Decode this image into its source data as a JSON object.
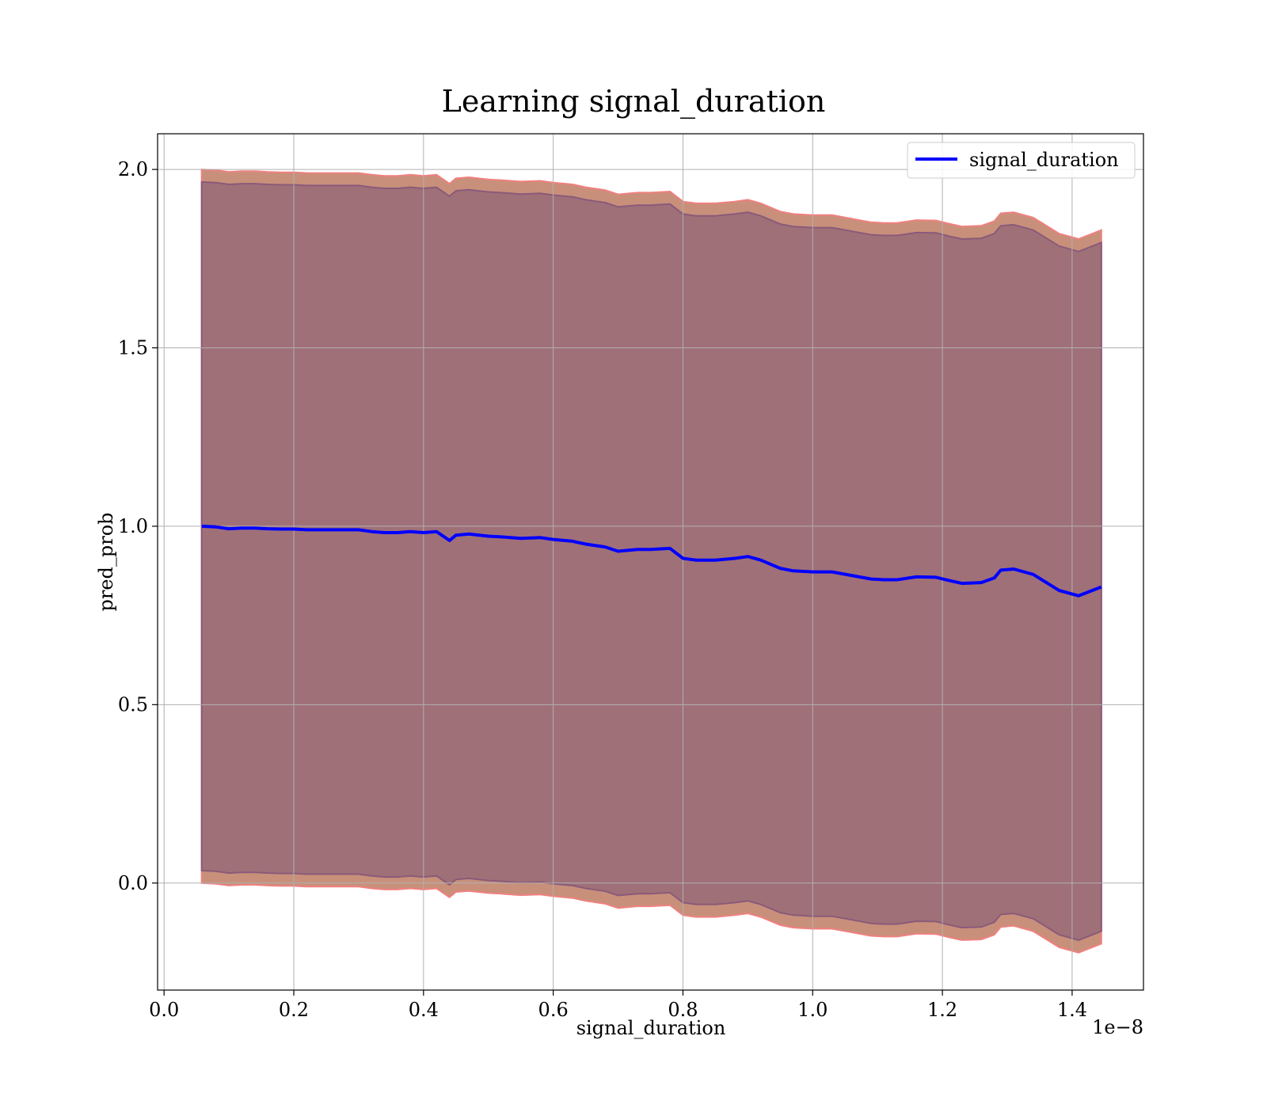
{
  "chart_data": {
    "type": "line",
    "title": "Learning signal_duration",
    "xlabel": "signal_duration",
    "ylabel": "pred_prob",
    "x_offset_label": "1e−8",
    "xlim": [
      -0.01,
      1.51
    ],
    "ylim": [
      -0.3,
      2.1
    ],
    "xticks": [
      0.0,
      0.2,
      0.4,
      0.6,
      0.8,
      1.0,
      1.2,
      1.4
    ],
    "xtick_labels": [
      "0.0",
      "0.2",
      "0.4",
      "0.6",
      "0.8",
      "1.0",
      "1.2",
      "1.4"
    ],
    "yticks": [
      0.0,
      0.5,
      1.0,
      1.5,
      2.0
    ],
    "ytick_labels": [
      "0.0",
      "0.5",
      "1.0",
      "1.5",
      "2.0"
    ],
    "grid": true,
    "legend_position": "upper-right",
    "series": [
      {
        "name": "signal_duration",
        "color": "#0000ff",
        "x": [
          0.058,
          0.08,
          0.1,
          0.12,
          0.14,
          0.16,
          0.18,
          0.2,
          0.22,
          0.24,
          0.26,
          0.28,
          0.3,
          0.32,
          0.34,
          0.36,
          0.38,
          0.4,
          0.42,
          0.44,
          0.45,
          0.47,
          0.5,
          0.52,
          0.55,
          0.58,
          0.6,
          0.63,
          0.65,
          0.68,
          0.7,
          0.73,
          0.75,
          0.78,
          0.8,
          0.82,
          0.85,
          0.88,
          0.9,
          0.92,
          0.95,
          0.97,
          1.0,
          1.03,
          1.06,
          1.09,
          1.11,
          1.13,
          1.16,
          1.19,
          1.21,
          1.23,
          1.26,
          1.28,
          1.29,
          1.31,
          1.34,
          1.38,
          1.41,
          1.445
        ],
        "y": [
          1.0,
          0.998,
          0.993,
          0.995,
          0.995,
          0.993,
          0.992,
          0.992,
          0.99,
          0.99,
          0.99,
          0.99,
          0.99,
          0.985,
          0.982,
          0.982,
          0.985,
          0.982,
          0.985,
          0.96,
          0.975,
          0.978,
          0.972,
          0.97,
          0.966,
          0.968,
          0.963,
          0.958,
          0.95,
          0.942,
          0.93,
          0.935,
          0.935,
          0.938,
          0.91,
          0.905,
          0.905,
          0.91,
          0.915,
          0.905,
          0.882,
          0.875,
          0.872,
          0.872,
          0.862,
          0.852,
          0.85,
          0.85,
          0.858,
          0.857,
          0.848,
          0.84,
          0.842,
          0.855,
          0.877,
          0.88,
          0.865,
          0.82,
          0.805,
          0.83
        ]
      }
    ],
    "bands": [
      {
        "name": "outer",
        "color": "#c8907a",
        "edge_color": "#f08080",
        "lower_offset": -1.0,
        "upper_offset": 1.0
      },
      {
        "name": "inner",
        "color": "#a07078",
        "edge_color": "#8a5a7a",
        "lower_offset": -0.965,
        "upper_offset": 0.965
      }
    ]
  }
}
